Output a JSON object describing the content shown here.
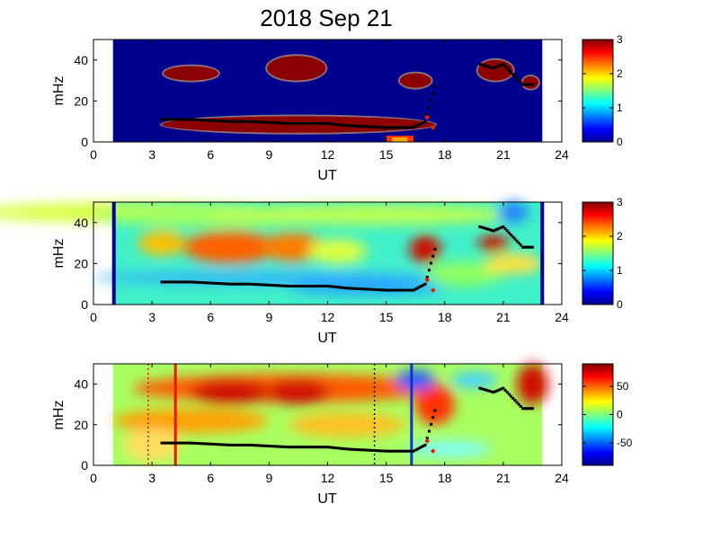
{
  "title": "2018 Sep 21",
  "panels": [
    {
      "ylabel": "mHz",
      "xlabel": "UT",
      "colorbar": {
        "min": 0,
        "max": 3,
        "ticks": [
          "0",
          "1",
          "2",
          "3"
        ],
        "colormap": "jet"
      }
    },
    {
      "ylabel": "mHz",
      "xlabel": "UT",
      "colorbar": {
        "min": 0,
        "max": 3,
        "ticks": [
          "0",
          "1",
          "2",
          "3"
        ],
        "colormap": "jet"
      }
    },
    {
      "ylabel": "mHz",
      "xlabel": "UT",
      "colorbar": {
        "min": -90,
        "max": 90,
        "ticks": [
          "-50",
          "0",
          "50"
        ],
        "colormap": "jet"
      }
    }
  ],
  "chart_data": {
    "type": "heatmap",
    "x_range": [
      0,
      24
    ],
    "y_range": [
      0,
      50
    ],
    "x_ticks": [
      "0",
      "3",
      "6",
      "9",
      "12",
      "15",
      "18",
      "21",
      "24"
    ],
    "y_ticks": [
      "0",
      "20",
      "40"
    ],
    "data_coverage_ut": [
      1.0,
      23.0
    ],
    "background_color": "#00008f",
    "blob_color": "#8b0000",
    "panel1_blobs_ut_mhz": [
      [
        5.0,
        33.5,
        1.4,
        3.5
      ],
      [
        10.4,
        36.0,
        1.5,
        6.0
      ],
      [
        16.5,
        30.0,
        0.8,
        3.5
      ],
      [
        20.6,
        35.0,
        0.9,
        5.0
      ],
      [
        22.4,
        29.0,
        0.4,
        3.0
      ],
      [
        10.5,
        8.5,
        7.0,
        4.0
      ]
    ],
    "trace_mhz": [
      [
        3.5,
        11
      ],
      [
        4.0,
        11
      ],
      [
        5.0,
        11
      ],
      [
        6.0,
        10.5
      ],
      [
        7.0,
        10
      ],
      [
        8.0,
        10
      ],
      [
        9.0,
        9.5
      ],
      [
        10.0,
        9
      ],
      [
        11.0,
        9
      ],
      [
        12.0,
        9
      ],
      [
        13.0,
        8
      ],
      [
        14.0,
        7.5
      ],
      [
        15.0,
        7
      ],
      [
        16.0,
        7
      ],
      [
        16.4,
        7
      ],
      [
        16.6,
        8
      ],
      [
        17.0,
        10
      ],
      [
        17.5,
        27
      ],
      [
        19.8,
        38
      ],
      [
        20.5,
        36
      ],
      [
        21.0,
        38
      ],
      [
        22.0,
        28
      ],
      [
        22.5,
        28
      ]
    ],
    "panel3_vertical_lines_ut": [
      {
        "ut": 4.2,
        "color": "#ee1111",
        "style": "solid"
      },
      {
        "ut": 16.3,
        "color": "#1133cc",
        "style": "solid"
      },
      {
        "ut": 2.8,
        "color": "#ee1111",
        "style": "dotted"
      },
      {
        "ut": 14.4,
        "color": "#111111",
        "style": "dotted"
      }
    ]
  }
}
